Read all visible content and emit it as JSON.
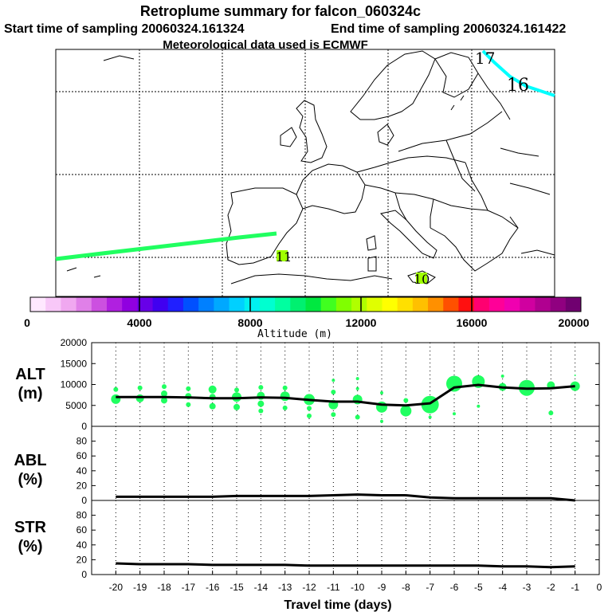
{
  "header": {
    "title": "Retroplume summary for falcon_060324c",
    "start_label": "Start time of sampling 20060324.161324",
    "end_label": "End time of sampling 20060324.161422",
    "met_label": "Meteorological data used is ECMWF"
  },
  "map": {
    "trajectory_labels": [
      "17",
      "16",
      "11",
      "10"
    ],
    "trajectory_colors": [
      "#00ffff",
      "#20ff60",
      "#a0ff00"
    ]
  },
  "colorbar": {
    "label": "Altitude (m)",
    "tick_labels": [
      "0",
      "4000",
      "8000",
      "12000",
      "16000",
      "20000"
    ],
    "colors": [
      "#ffe8ff",
      "#f8c8f8",
      "#f0a8f0",
      "#e080e8",
      "#cc50e0",
      "#b020e0",
      "#9000e0",
      "#6800e8",
      "#4000f0",
      "#2020ff",
      "#0050ff",
      "#0080ff",
      "#00a8ff",
      "#00d0ff",
      "#00f0f0",
      "#00ffd0",
      "#00ffa0",
      "#00f070",
      "#00e840",
      "#40ff20",
      "#80ff00",
      "#b0ff00",
      "#e0ff00",
      "#ffff00",
      "#ffe000",
      "#ffc000",
      "#ff9000",
      "#ff5000",
      "#ff1010",
      "#ff0070",
      "#ff0098",
      "#f000b0",
      "#d000a0",
      "#b00090",
      "#900080",
      "#700070"
    ]
  },
  "chart_data": [
    {
      "type": "line",
      "title": "ALT (m)",
      "panel_label": [
        "ALT",
        "(m)"
      ],
      "ylim": [
        0,
        20000
      ],
      "yticks": [
        "0",
        "5000",
        "10000",
        "15000",
        "20000"
      ],
      "x": [
        -20,
        -19,
        -18,
        -17,
        -16,
        -15,
        -14,
        -13,
        -12,
        -11,
        -10,
        -9,
        -8,
        -7,
        -6,
        -5,
        -4,
        -3,
        -2,
        -1
      ],
      "series": [
        {
          "name": "median altitude",
          "values": [
            7000,
            7000,
            7000,
            6900,
            6700,
            6700,
            6900,
            6800,
            6300,
            5900,
            5900,
            5200,
            5000,
            5500,
            9300,
            9900,
            9300,
            9000,
            9100,
            9600
          ]
        }
      ],
      "clusters": [
        {
          "x": -20,
          "y": 6500,
          "s": 6
        },
        {
          "x": -20,
          "y": 8800,
          "s": 3
        },
        {
          "x": -19,
          "y": 6700,
          "s": 5
        },
        {
          "x": -19,
          "y": 9200,
          "s": 3
        },
        {
          "x": -18,
          "y": 6200,
          "s": 4
        },
        {
          "x": -18,
          "y": 7800,
          "s": 4
        },
        {
          "x": -18,
          "y": 9500,
          "s": 3
        },
        {
          "x": -17,
          "y": 5200,
          "s": 3
        },
        {
          "x": -17,
          "y": 7200,
          "s": 4
        },
        {
          "x": -17,
          "y": 9000,
          "s": 3
        },
        {
          "x": -16,
          "y": 4800,
          "s": 4
        },
        {
          "x": -16,
          "y": 7000,
          "s": 4
        },
        {
          "x": -16,
          "y": 8800,
          "s": 5
        },
        {
          "x": -15,
          "y": 4600,
          "s": 4
        },
        {
          "x": -15,
          "y": 7000,
          "s": 6
        },
        {
          "x": -15,
          "y": 8700,
          "s": 3
        },
        {
          "x": -14,
          "y": 3700,
          "s": 3
        },
        {
          "x": -14,
          "y": 5400,
          "s": 4
        },
        {
          "x": -14,
          "y": 7300,
          "s": 5
        },
        {
          "x": -14,
          "y": 9300,
          "s": 3
        },
        {
          "x": -13,
          "y": 4400,
          "s": 3
        },
        {
          "x": -13,
          "y": 7200,
          "s": 6
        },
        {
          "x": -13,
          "y": 9200,
          "s": 3
        },
        {
          "x": -12,
          "y": 2500,
          "s": 3
        },
        {
          "x": -12,
          "y": 4300,
          "s": 3
        },
        {
          "x": -12,
          "y": 6400,
          "s": 7
        },
        {
          "x": -11,
          "y": 2800,
          "s": 3
        },
        {
          "x": -11,
          "y": 5200,
          "s": 6
        },
        {
          "x": -11,
          "y": 8200,
          "s": 3
        },
        {
          "x": -11,
          "y": 11000,
          "s": 2
        },
        {
          "x": -10,
          "y": 2200,
          "s": 3
        },
        {
          "x": -10,
          "y": 6400,
          "s": 6
        },
        {
          "x": -10,
          "y": 9000,
          "s": 2
        },
        {
          "x": -10,
          "y": 11400,
          "s": 2
        },
        {
          "x": -9,
          "y": 4600,
          "s": 7
        },
        {
          "x": -9,
          "y": 8000,
          "s": 2
        },
        {
          "x": -9,
          "y": 1200,
          "s": 2
        },
        {
          "x": -8,
          "y": 3700,
          "s": 7
        },
        {
          "x": -8,
          "y": 6200,
          "s": 3
        },
        {
          "x": -7,
          "y": 5200,
          "s": 11
        },
        {
          "x": -7,
          "y": 2200,
          "s": 2
        },
        {
          "x": -6,
          "y": 10200,
          "s": 10
        },
        {
          "x": -6,
          "y": 3000,
          "s": 2
        },
        {
          "x": -5,
          "y": 10700,
          "s": 8
        },
        {
          "x": -5,
          "y": 4800,
          "s": 2
        },
        {
          "x": -4,
          "y": 9400,
          "s": 5
        },
        {
          "x": -4,
          "y": 12000,
          "s": 2
        },
        {
          "x": -3,
          "y": 9200,
          "s": 10
        },
        {
          "x": -2,
          "y": 9800,
          "s": 5
        },
        {
          "x": -2,
          "y": 3200,
          "s": 3
        },
        {
          "x": -1,
          "y": 9600,
          "s": 6
        },
        {
          "x": -1,
          "y": 12200,
          "s": 1
        }
      ],
      "cluster_color": "#20ff60"
    },
    {
      "type": "line",
      "title": "ABL (%)",
      "panel_label": [
        "ABL",
        "(%)"
      ],
      "ylim": [
        0,
        100
      ],
      "yticks": [
        "0",
        "20",
        "40",
        "60",
        "80"
      ],
      "x": [
        -20,
        -19,
        -18,
        -17,
        -16,
        -15,
        -14,
        -13,
        -12,
        -11,
        -10,
        -9,
        -8,
        -7,
        -6,
        -5,
        -4,
        -3,
        -2,
        -1
      ],
      "series": [
        {
          "name": "ABL fraction",
          "values": [
            5,
            5,
            5,
            5,
            5,
            6,
            6,
            6,
            6,
            7,
            8,
            7,
            7,
            4,
            3,
            3,
            3,
            3,
            3,
            0
          ]
        }
      ]
    },
    {
      "type": "line",
      "title": "STR (%)",
      "panel_label": [
        "STR",
        "(%)"
      ],
      "ylim": [
        0,
        100
      ],
      "yticks": [
        "0",
        "20",
        "40",
        "60",
        "80"
      ],
      "x": [
        -20,
        -19,
        -18,
        -17,
        -16,
        -15,
        -14,
        -13,
        -12,
        -11,
        -10,
        -9,
        -8,
        -7,
        -6,
        -5,
        -4,
        -3,
        -2,
        -1
      ],
      "series": [
        {
          "name": "stratospheric fraction",
          "values": [
            15,
            14,
            14,
            14,
            13,
            13,
            13,
            13,
            12,
            12,
            12,
            12,
            12,
            12,
            12,
            12,
            11,
            11,
            10,
            11
          ]
        }
      ],
      "xlabel": "Travel time (days)",
      "xticks": [
        "-20",
        "-19",
        "-18",
        "-17",
        "-16",
        "-15",
        "-14",
        "-13",
        "-12",
        "-11",
        "-10",
        "-9",
        "-8",
        "-7",
        "-6",
        "-5",
        "-4",
        "-3",
        "-2",
        "-1",
        "0"
      ]
    }
  ]
}
